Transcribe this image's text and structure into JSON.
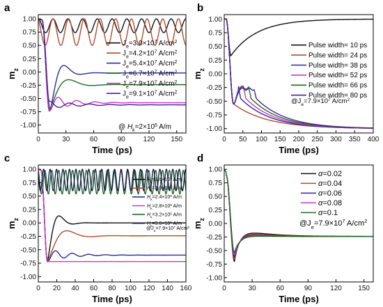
{
  "chart_data": [
    {
      "panel": "a",
      "type": "line",
      "xlabel": "Time (ps)",
      "ylabel": "m",
      "ylabel_sub": "z",
      "xlim": [
        0,
        160
      ],
      "ylim": [
        -1.15,
        1.08
      ],
      "xticks": [
        "0",
        "30",
        "60",
        "90",
        "120",
        "150"
      ],
      "yticks": [
        "1.00",
        "0.75",
        "0.50",
        "0.25",
        "0.00",
        "-0.25",
        "-0.50",
        "-0.75",
        "-1.00"
      ],
      "annotation": "@ H = 2×10 A/m",
      "series": [
        {
          "name": "J = 3.0×10 A/cm",
          "sym": "J",
          "sub": "e",
          "pre": "=3.0×10",
          "exp": "7",
          "post": " A/cm",
          "post_exp": "2",
          "color": "#111111",
          "shape": {
            "kind": "osc",
            "base": 0.87,
            "amp": 0.13,
            "period": 16,
            "phase": 0
          }
        },
        {
          "name": "J = 4.2×10 A/cm",
          "sym": "J",
          "sub": "e",
          "pre": "=4.2×10",
          "exp": "7",
          "post": " A/cm",
          "post_exp": "2",
          "color": "#b04a2a",
          "shape": {
            "kind": "osc",
            "base": 0.75,
            "amp": 0.25,
            "period": 17,
            "phase": 0.4
          }
        },
        {
          "name": "J = 5.4×10 A/cm",
          "sym": "J",
          "sub": "e",
          "pre": "=5.4×10",
          "exp": "7",
          "post": " A/cm",
          "post_exp": "2",
          "color": "#2a2a9a",
          "shape": {
            "kind": "relax",
            "t0": 4,
            "tmin": 13,
            "vmin": -0.72,
            "final": -0.02,
            "tau": 10,
            "period": 35,
            "amp": 0.18
          }
        },
        {
          "name": "J = 6.7×10 A/cm",
          "sym": "J",
          "sub": "e",
          "pre": "=6.7×10",
          "exp": "7",
          "post": " A/cm",
          "post_exp": "2",
          "color": "#1f6a1f",
          "shape": {
            "kind": "relax",
            "t0": 4,
            "tmin": 12,
            "vmin": -0.72,
            "final": -0.24,
            "tau": 14,
            "period": 50,
            "amp": 0.15
          }
        },
        {
          "name": "J = 7.9×10 A/cm",
          "sym": "J",
          "sub": "e",
          "pre": "=7.9×10",
          "exp": "7",
          "post": " A/cm",
          "post_exp": "2",
          "color": "#cc33cc",
          "shape": {
            "kind": "relax",
            "t0": 4,
            "tmin": 12,
            "vmin": -0.74,
            "final": -0.58,
            "tau": 22,
            "period": 20,
            "amp": 0.15
          }
        },
        {
          "name": "J = 9.1×10 A/cm",
          "sym": "J",
          "sub": "e",
          "pre": "=9.1×10",
          "exp": "7",
          "post": " A/cm",
          "post_exp": "2",
          "color": "#4a1f9a",
          "shape": {
            "kind": "relax",
            "t0": 4,
            "tmin": 12,
            "vmin": -0.55,
            "final": -0.62,
            "tau": 30,
            "period": 22,
            "amp": 0.3
          }
        }
      ]
    },
    {
      "panel": "b",
      "type": "line",
      "xlabel": "Time (ps)",
      "ylabel": "m",
      "ylabel_sub": "z",
      "xlim": [
        0,
        400
      ],
      "ylim": [
        -1.08,
        1.08
      ],
      "xticks": [
        "0",
        "50",
        "100",
        "150",
        "200",
        "250",
        "300",
        "350",
        "400"
      ],
      "yticks": [
        "1.00",
        "0.75",
        "0.50",
        "0.25",
        "0.00",
        "-0.25",
        "-0.50",
        "-0.75",
        "-1.00"
      ],
      "annotation": "@J = 7.9×10 A/cm",
      "series": [
        {
          "name": "Pulse width= 10 ps",
          "color": "#111111",
          "pulse": 10
        },
        {
          "name": "Pulse width= 24 ps",
          "color": "#b04a2a",
          "pulse": 24
        },
        {
          "name": "Pulse width= 38 ps",
          "color": "#2a2a9a",
          "pulse": 38
        },
        {
          "name": "Pulse width= 52 ps",
          "color": "#cc33cc",
          "pulse": 52
        },
        {
          "name": "Pulse width= 66 ps",
          "color": "#1f6a1f",
          "pulse": 66
        },
        {
          "name": "Pulse width= 80 ps",
          "color": "#4a1f9a",
          "pulse": 80
        }
      ]
    },
    {
      "panel": "c",
      "type": "line",
      "xlabel": "Time (ps)",
      "ylabel": "m",
      "ylabel_sub": "z",
      "xlim": [
        0,
        160
      ],
      "ylim": [
        -1.1,
        1.08
      ],
      "xticks": [
        "0",
        "20",
        "40",
        "60",
        "80",
        "100",
        "120",
        "140",
        "160"
      ],
      "yticks": [
        "1.00",
        "0.75",
        "0.50",
        "0.25",
        "0.00",
        "-0.25",
        "-0.50",
        "-0.75",
        "-1.00"
      ],
      "annotation": "@J = 7.9×10 A/cm",
      "series": [
        {
          "name": "H = 1.6×10 A/m",
          "sym": "H",
          "sub": "k",
          "pre": "=1.6×10",
          "exp": "5",
          "post": " A/m",
          "color": "#111111",
          "shape": {
            "kind": "relax",
            "t0": 3,
            "tmin": 10,
            "vmin": -0.72,
            "final": 0.0,
            "tau": 8,
            "period": 30,
            "amp": 0.3
          }
        },
        {
          "name": "H = 2.0×10 A/m",
          "sym": "H",
          "sub": "k",
          "pre": "=2.0×10",
          "exp": "5",
          "post": " A/m",
          "color": "#b04a2a",
          "shape": {
            "kind": "relax",
            "t0": 3,
            "tmin": 10,
            "vmin": -0.72,
            "final": -0.24,
            "tau": 14,
            "period": 50,
            "amp": 0.2
          }
        },
        {
          "name": "H = 2.4×10 A/m",
          "sym": "H",
          "sub": "k",
          "pre": "=2.4×10",
          "exp": "5",
          "post": " A/m",
          "color": "#2a2a9a",
          "shape": {
            "kind": "relax",
            "t0": 3,
            "tmin": 10,
            "vmin": -0.72,
            "final": -0.6,
            "tau": 22,
            "period": 18,
            "amp": 0.15
          }
        },
        {
          "name": "H = 2.8×10 A/m",
          "sym": "H",
          "sub": "k",
          "pre": "=2.8×10",
          "exp": "5",
          "post": " A/m",
          "color": "#cc33cc",
          "shape": {
            "kind": "relax",
            "t0": 3,
            "tmin": 10,
            "vmin": -0.72,
            "final": -0.72,
            "tau": 40,
            "period": 10,
            "amp": 0.14
          }
        },
        {
          "name": "H = 3.2×10 A/m",
          "sym": "H",
          "sub": "k",
          "pre": "=3.2×10",
          "exp": "5",
          "post": " A/m",
          "color": "#1f6a1f",
          "shape": {
            "kind": "osc",
            "base": 0.76,
            "amp": 0.22,
            "period": 7.5,
            "phase": 0.3
          }
        },
        {
          "name": "H = 3.6×10 A/m",
          "sym": "H",
          "sub": "k",
          "pre": "=3.6×10",
          "exp": "5",
          "post": " A/m",
          "color": "#1a1a55",
          "shape": {
            "kind": "osc",
            "base": 0.8,
            "amp": 0.2,
            "period": 7,
            "phase": 1.1
          }
        }
      ]
    },
    {
      "panel": "d",
      "type": "line",
      "xlabel": "Time (ps)",
      "ylabel": "m",
      "ylabel_sub": "z",
      "xlim": [
        0,
        160
      ],
      "ylim": [
        -1.08,
        1.08
      ],
      "xticks": [
        "0",
        "30",
        "60",
        "90",
        "120",
        "150"
      ],
      "yticks": [
        "1.00",
        "0.75",
        "0.50",
        "0.25",
        "0.00",
        "-0.25",
        "-0.50",
        "-0.75",
        "-1.00"
      ],
      "annotation": "@J = 7.9×10 A/cm",
      "series": [
        {
          "name": "α=0.02",
          "alpha": "0.02",
          "color": "#111111",
          "vmin": -0.7,
          "tmin": 11,
          "over": -0.07,
          "tau": 28
        },
        {
          "name": "α=0.04",
          "alpha": "0.04",
          "color": "#b04a2a",
          "vmin": -0.66,
          "tmin": 11,
          "over": -0.1,
          "tau": 24
        },
        {
          "name": "α=0.06",
          "alpha": "0.06",
          "color": "#2a2a9a",
          "vmin": -0.62,
          "tmin": 11,
          "over": -0.13,
          "tau": 20
        },
        {
          "name": "α=0.08",
          "alpha": "0.08",
          "color": "#cc33cc",
          "vmin": -0.58,
          "tmin": 11,
          "over": -0.16,
          "tau": 17
        },
        {
          "name": "α=0.1",
          "alpha": "0.1",
          "color": "#1f6a1f",
          "vmin": -0.54,
          "tmin": 11,
          "over": -0.19,
          "tau": 14
        }
      ]
    }
  ]
}
